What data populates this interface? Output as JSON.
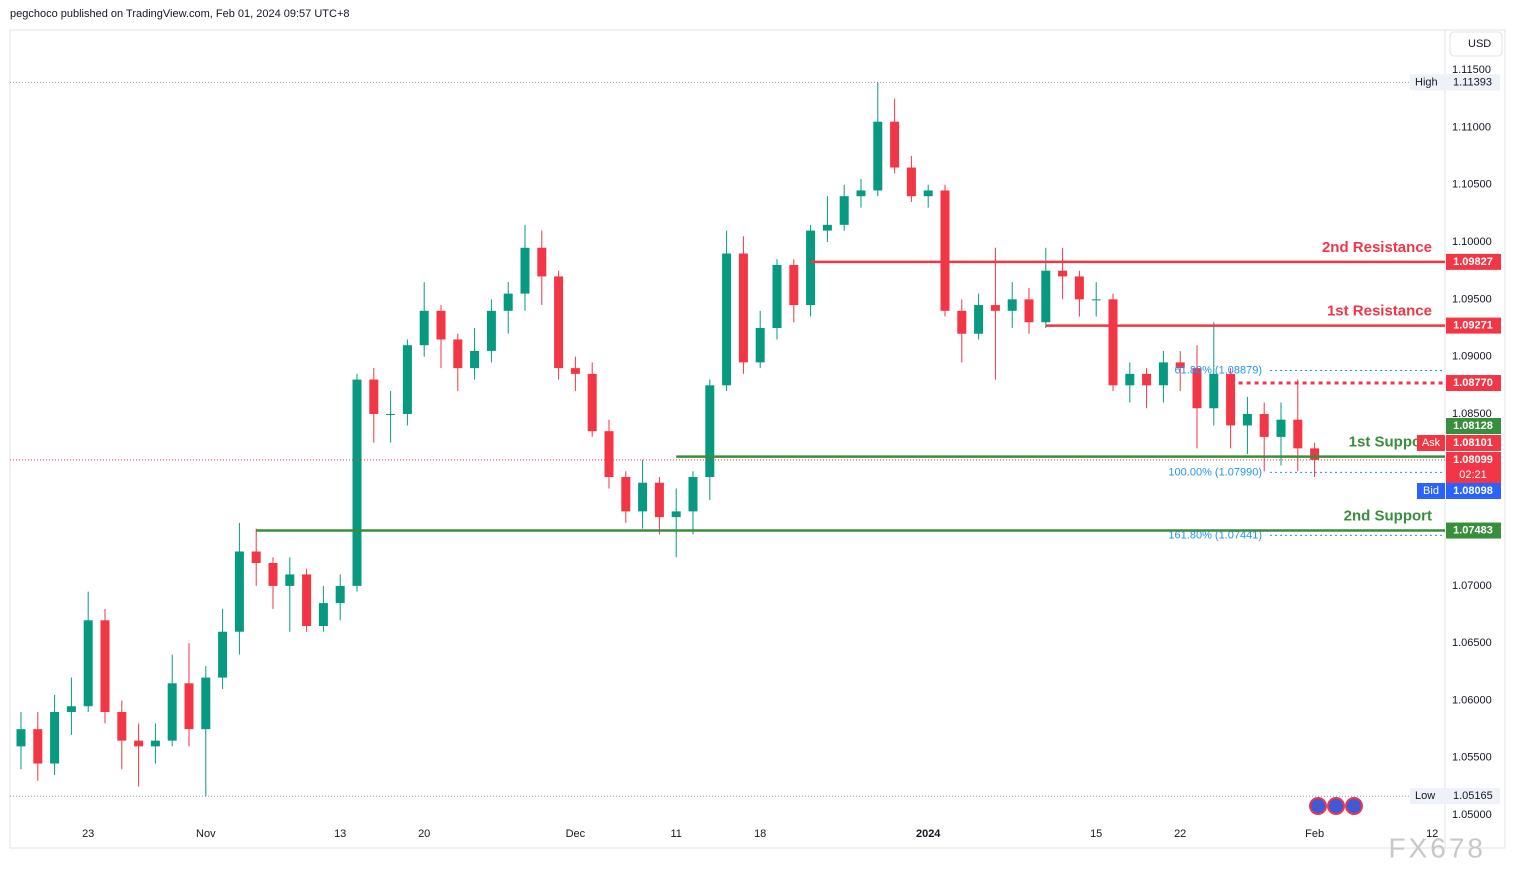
{
  "header": {
    "text": "pegchoco published on TradingView.com, Feb 01, 2024 09:57 UTC+8",
    "currency": "USD",
    "watermark": "FX678"
  },
  "chart_data": {
    "type": "candlestick",
    "up_color": "#089981",
    "down_color": "#f23645",
    "categories": [
      null,
      null,
      null,
      null,
      "23",
      null,
      null,
      null,
      null,
      null,
      null,
      "Nov",
      null,
      null,
      null,
      null,
      null,
      null,
      null,
      "13",
      null,
      null,
      null,
      null,
      "20",
      null,
      null,
      null,
      null,
      null,
      null,
      null,
      null,
      "Dec",
      null,
      null,
      null,
      null,
      null,
      "11",
      null,
      null,
      null,
      null,
      "18",
      null,
      null,
      null,
      null,
      null,
      null,
      null,
      null,
      null,
      "2024",
      null,
      null,
      null,
      null,
      null,
      null,
      null,
      null,
      null,
      "15",
      null,
      null,
      null,
      null,
      "22",
      null,
      null,
      null,
      null,
      null,
      null,
      null,
      "Feb",
      null,
      null,
      null,
      null,
      null,
      null,
      "12"
    ],
    "open": [
      1.056,
      1.0575,
      1.0545,
      1.059,
      1.0595,
      1.067,
      1.059,
      1.0565,
      1.056,
      1.0565,
      1.0615,
      1.0575,
      1.062,
      1.066,
      1.073,
      1.072,
      1.07,
      1.071,
      1.0665,
      1.0685,
      1.07,
      1.088,
      1.085,
      1.085,
      1.091,
      1.094,
      1.0915,
      1.089,
      1.0905,
      1.094,
      1.0955,
      1.0995,
      1.097,
      1.089,
      1.0885,
      1.0835,
      1.0795,
      1.0765,
      1.079,
      1.076,
      1.0765,
      1.0795,
      1.0875,
      1.099,
      1.0895,
      1.0925,
      1.098,
      1.0945,
      1.101,
      1.1015,
      1.104,
      1.1045,
      1.1105,
      1.1065,
      1.104,
      1.1045,
      1.094,
      1.092,
      1.0945,
      1.094,
      1.095,
      1.093,
      1.0975,
      1.097,
      1.095,
      1.095,
      1.0875,
      1.0885,
      1.0875,
      1.0895,
      1.089,
      1.0855,
      1.0885,
      1.084,
      1.085,
      1.083,
      1.0845,
      1.082,
      null,
      null,
      null,
      null,
      null,
      null,
      null
    ],
    "high": [
      1.059,
      1.059,
      1.0605,
      1.062,
      1.0695,
      1.068,
      1.06,
      1.058,
      1.058,
      1.064,
      1.065,
      1.063,
      1.068,
      1.0755,
      1.075,
      1.0725,
      1.0725,
      1.0715,
      1.07,
      1.071,
      1.0885,
      1.089,
      1.087,
      1.0915,
      1.0965,
      1.0945,
      1.092,
      1.0925,
      1.095,
      1.0965,
      1.1015,
      1.101,
      1.0975,
      1.09,
      1.0895,
      1.0845,
      1.08,
      1.081,
      1.0795,
      1.0785,
      1.08,
      1.088,
      1.101,
      1.1005,
      1.094,
      1.0985,
      1.0985,
      1.1015,
      1.104,
      1.105,
      1.1055,
      1.11393,
      1.1125,
      1.1075,
      1.105,
      1.105,
      1.095,
      1.0955,
      1.0995,
      1.0965,
      1.096,
      1.0995,
      1.0995,
      1.0975,
      1.0965,
      1.0955,
      1.0895,
      1.089,
      1.0905,
      1.0905,
      1.091,
      1.093,
      1.089,
      1.0865,
      1.086,
      1.086,
      1.088,
      1.0825,
      null,
      null,
      null,
      null,
      null,
      null,
      null
    ],
    "low": [
      1.054,
      1.053,
      1.0535,
      1.057,
      1.059,
      1.058,
      1.054,
      1.0525,
      1.0545,
      1.056,
      1.056,
      1.05165,
      1.061,
      1.064,
      1.07,
      1.068,
      1.066,
      1.066,
      1.066,
      1.067,
      1.0695,
      1.0825,
      1.0825,
      1.084,
      1.09,
      1.089,
      1.087,
      1.088,
      1.0895,
      1.092,
      1.094,
      1.0945,
      1.088,
      1.087,
      1.083,
      1.0785,
      1.0755,
      1.075,
      1.0745,
      1.0725,
      1.0745,
      1.0775,
      1.087,
      1.0885,
      1.089,
      1.0915,
      1.093,
      1.0935,
      1.1,
      1.101,
      1.103,
      1.104,
      1.106,
      1.1035,
      1.103,
      1.0935,
      1.0895,
      1.0915,
      1.088,
      1.0925,
      1.092,
      1.0925,
      1.095,
      1.0935,
      1.0935,
      1.087,
      1.086,
      1.0855,
      1.086,
      1.087,
      1.082,
      1.084,
      1.082,
      1.0815,
      1.08,
      1.0805,
      1.08,
      1.0795,
      null,
      null,
      null,
      null,
      null,
      null,
      null
    ],
    "close": [
      1.0575,
      1.0545,
      1.059,
      1.0595,
      1.067,
      1.059,
      1.0565,
      1.056,
      1.0565,
      1.0615,
      1.0575,
      1.062,
      1.066,
      1.073,
      1.072,
      1.07,
      1.071,
      1.0665,
      1.0685,
      1.07,
      1.088,
      1.085,
      1.085,
      1.091,
      1.094,
      1.0915,
      1.089,
      1.0905,
      1.094,
      1.0955,
      1.0995,
      1.097,
      1.089,
      1.0885,
      1.0835,
      1.0795,
      1.0765,
      1.079,
      1.076,
      1.0765,
      1.0795,
      1.0875,
      1.099,
      1.0895,
      1.0925,
      1.098,
      1.0945,
      1.101,
      1.1015,
      1.104,
      1.1045,
      1.1105,
      1.1065,
      1.104,
      1.1045,
      1.094,
      1.092,
      1.0945,
      1.094,
      1.095,
      1.093,
      1.0975,
      1.097,
      1.095,
      1.095,
      1.0875,
      1.0885,
      1.0875,
      1.0895,
      1.089,
      1.0855,
      1.0885,
      1.084,
      1.085,
      1.083,
      1.0845,
      1.082,
      1.081,
      null,
      null,
      null,
      null,
      null,
      null,
      null
    ],
    "ylim": [
      1.0494,
      1.1185
    ],
    "yticks": [
      {
        "value": 1.05,
        "label": "1.05000"
      },
      {
        "value": 1.055,
        "label": "1.05500"
      },
      {
        "value": 1.06,
        "label": "1.06000"
      },
      {
        "value": 1.065,
        "label": "1.06500"
      },
      {
        "value": 1.07,
        "label": "1.07000"
      },
      {
        "value": 1.075,
        "label": "1.07500"
      },
      {
        "value": 1.08,
        "label": "1.08000"
      },
      {
        "value": 1.085,
        "label": "1.08500"
      },
      {
        "value": 1.09,
        "label": "1.09000"
      },
      {
        "value": 1.095,
        "label": "1.09500"
      },
      {
        "value": 1.1,
        "label": "1.10000"
      },
      {
        "value": 1.105,
        "label": "1.10500"
      },
      {
        "value": 1.11,
        "label": "1.11000"
      },
      {
        "value": 1.115,
        "label": "1.11500"
      }
    ],
    "grid": false,
    "levels": [
      {
        "name": "2nd Resistance",
        "value": 1.09827,
        "color": "#f23645"
      },
      {
        "name": "1st Resistance",
        "value": 1.09271,
        "color": "#f23645"
      },
      {
        "value": 1.0877,
        "label": "1.08770",
        "color": "#f23645",
        "dashed": true
      },
      {
        "name": "1st Support",
        "value": 1.08128,
        "color": "#388e3c"
      },
      {
        "name": "2nd Support",
        "value": 1.07483,
        "color": "#388e3c"
      }
    ],
    "fib_levels": [
      {
        "label": "61.80% (1.08879)",
        "value": 1.08879
      },
      {
        "label": "100.00% (1.07990)",
        "value": 1.0799
      },
      {
        "label": "161.80% (1.07441)",
        "value": 1.07441
      }
    ],
    "quotes": [
      {
        "name": "Ask",
        "value": 1.08101,
        "color": "#f23645"
      },
      {
        "value": 1.08099,
        "countdown": "02:21",
        "color": "#f23645"
      },
      {
        "name": "Bid",
        "value": 1.08098,
        "color": "#2962ff"
      }
    ],
    "extremes": [
      {
        "name": "High",
        "value": 1.11393
      },
      {
        "name": "Low",
        "value": 1.05165
      }
    ]
  }
}
